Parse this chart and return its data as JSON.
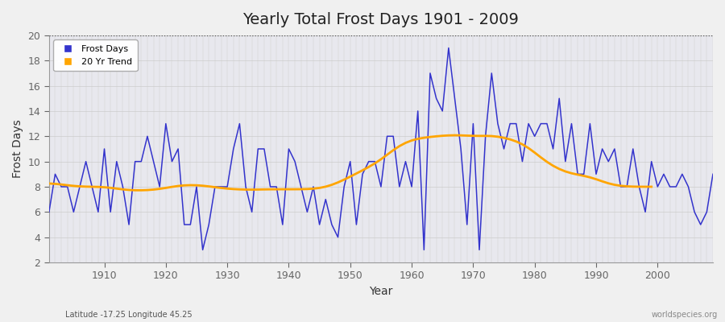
{
  "title": "Yearly Total Frost Days 1901 - 2009",
  "xlabel": "Year",
  "ylabel": "Frost Days",
  "subtitle": "Latitude -17.25 Longitude 45.25",
  "watermark": "worldspecies.org",
  "years": [
    1901,
    1902,
    1903,
    1904,
    1905,
    1906,
    1907,
    1908,
    1909,
    1910,
    1911,
    1912,
    1913,
    1914,
    1915,
    1916,
    1917,
    1918,
    1919,
    1920,
    1921,
    1922,
    1923,
    1924,
    1925,
    1926,
    1927,
    1928,
    1929,
    1930,
    1931,
    1932,
    1933,
    1934,
    1935,
    1936,
    1937,
    1938,
    1939,
    1940,
    1941,
    1942,
    1943,
    1944,
    1945,
    1946,
    1947,
    1948,
    1949,
    1950,
    1951,
    1952,
    1953,
    1954,
    1955,
    1956,
    1957,
    1958,
    1959,
    1960,
    1961,
    1962,
    1963,
    1964,
    1965,
    1966,
    1967,
    1968,
    1969,
    1970,
    1971,
    1972,
    1973,
    1974,
    1975,
    1976,
    1977,
    1978,
    1979,
    1980,
    1981,
    1982,
    1983,
    1984,
    1985,
    1986,
    1987,
    1988,
    1989,
    1990,
    1991,
    1992,
    1993,
    1994,
    1995,
    1996,
    1997,
    1998,
    1999,
    2000,
    2001,
    2002,
    2003,
    2004,
    2005,
    2006,
    2007,
    2008,
    2009
  ],
  "frost_days": [
    6,
    9,
    8,
    8,
    6,
    8,
    10,
    8,
    6,
    11,
    6,
    10,
    8,
    5,
    10,
    10,
    12,
    10,
    8,
    13,
    10,
    11,
    5,
    5,
    8,
    3,
    5,
    8,
    8,
    8,
    11,
    13,
    8,
    6,
    11,
    11,
    8,
    8,
    5,
    11,
    10,
    8,
    6,
    8,
    5,
    7,
    5,
    4,
    8,
    10,
    5,
    9,
    10,
    10,
    8,
    12,
    12,
    8,
    10,
    8,
    14,
    3,
    17,
    15,
    14,
    19,
    15,
    11,
    5,
    13,
    3,
    12,
    17,
    13,
    11,
    13,
    13,
    10,
    13,
    12,
    13,
    13,
    11,
    15,
    10,
    13,
    9,
    9,
    13,
    9,
    11,
    10,
    11,
    8,
    8,
    11,
    8,
    6,
    10,
    8,
    9,
    8,
    8,
    9,
    8,
    6,
    5,
    6,
    9
  ],
  "trend": [
    8.3,
    8.25,
    8.2,
    8.1,
    8.05,
    8.0,
    8.0,
    8.0,
    8.0,
    8.0,
    7.95,
    7.85,
    7.75,
    7.72,
    7.7,
    7.7,
    7.72,
    7.75,
    7.8,
    7.9,
    8.0,
    8.1,
    8.15,
    8.15,
    8.15,
    8.1,
    8.05,
    7.95,
    7.9,
    7.82,
    7.8,
    7.8,
    7.75,
    7.75,
    7.78,
    7.8,
    7.8,
    7.8,
    7.8,
    7.8,
    7.8,
    7.8,
    7.8,
    7.82,
    7.85,
    7.95,
    8.1,
    8.3,
    8.55,
    8.8,
    9.05,
    9.3,
    9.55,
    9.8,
    10.1,
    10.5,
    11.0,
    11.3,
    11.55,
    11.75,
    11.85,
    11.9,
    11.95,
    12.0,
    12.05,
    12.1,
    12.1,
    12.1,
    12.05,
    12.0,
    12.0,
    12.05,
    12.1,
    12.0,
    11.9,
    11.8,
    11.65,
    11.45,
    11.2,
    10.7,
    10.3,
    9.9,
    9.6,
    9.35,
    9.15,
    9.0,
    8.95,
    8.9,
    8.8,
    8.65,
    8.4,
    8.2,
    8.1,
    8.05,
    8.0,
    8.0,
    8.0,
    8.0,
    8.0
  ],
  "frost_color": "#3333cc",
  "trend_color": "#ffa500",
  "bg_color": "#f0f0f0",
  "plot_bg_color": "#e8e8ee",
  "ylim": [
    2,
    20
  ],
  "yticks": [
    2,
    4,
    6,
    8,
    10,
    12,
    14,
    16,
    18,
    20
  ],
  "xticks": [
    1910,
    1920,
    1930,
    1940,
    1950,
    1960,
    1970,
    1980,
    1990,
    2000
  ],
  "grid_color": "#cccccc",
  "spine_color": "#999999",
  "tick_color": "#666666",
  "title_fontsize": 14,
  "axis_fontsize": 9,
  "legend_fontsize": 8
}
